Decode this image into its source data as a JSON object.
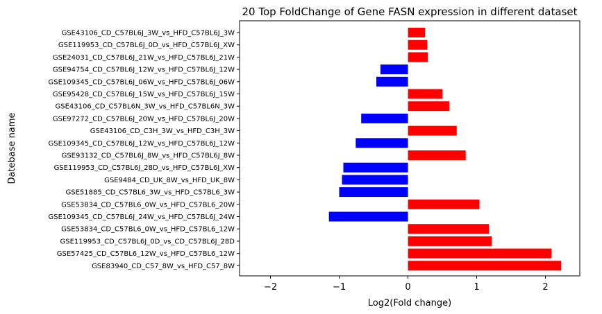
{
  "chart_data": {
    "type": "bar",
    "orientation": "horizontal",
    "title": "20 Top FoldChange of Gene FASN expression in different dataset",
    "xlabel": "Log2(Fold change)",
    "ylabel": "Datebase name",
    "xlim": [
      -2.45,
      2.5
    ],
    "xticks": [
      -2,
      -1,
      0,
      1,
      2
    ],
    "xtick_labels": [
      "−2",
      "−1",
      "0",
      "1",
      "2"
    ],
    "grid": false,
    "colors": {
      "positive": "#ff0000",
      "negative": "#0000ff"
    },
    "categories": [
      "GSE43106_CD_C57BL6J_3W_vs_HFD_C57BL6J_3W",
      "GSE119953_CD_C57BL6J_0D_vs_HFD_C57BL6J_XW",
      "GSE24031_CD_C57BL6J_21W_vs_HFD_C57BL6J_21W",
      "GSE94754_CD_C57BL6J_12W_vs_HFD_C57BL6J_12W",
      "GSE109345_CD_C57BL6J_06W_vs_HFD_C57BL6J_06W",
      "GSE95428_CD_C57BL6J_15W_vs_HFD_C57BL6J_15W",
      "GSE43106_CD_C57BL6N_3W_vs_HFD_C57BL6N_3W",
      "GSE97272_CD_C57BL6J_20W_vs_HFD_C57BL6J_20W",
      "GSE43106_CD_C3H_3W_vs_HFD_C3H_3W",
      "GSE109345_CD_C57BL6J_12W_vs_HFD_C57BL6J_12W",
      "GSE93132_CD_C57BL6J_8W_vs_HFD_C57BL6J_8W",
      "GSE119953_CD_C57BL6J_28D_vs_HFD_C57BL6J_XW",
      "GSE9484_CD_UK_8W_vs_HFD_UK_8W",
      "GSE51885_CD_C57BL6_3W_vs_HFD_C57BL6_3W",
      "GSE53834_CD_C57BL6_0W_vs_HFD_C57BL6_20W",
      "GSE109345_CD_C57BL6J_24W_vs_HFD_C57BL6J_24W",
      "GSE53834_CD_C57BL6_0W_vs_HFD_C57BL6_12W",
      "GSE119953_CD_C57BL6J_0D_vs_CD_C57BL6J_28D",
      "GSE57425_CD_C57BL6_12W_vs_HFD_C57BL6_12W",
      "GSE83940_CD_C57_8W_vs_HFD_C57_8W"
    ],
    "values": [
      0.25,
      0.28,
      0.29,
      -0.4,
      -0.46,
      0.5,
      0.6,
      -0.68,
      0.71,
      -0.76,
      0.84,
      -0.94,
      -0.96,
      -1.0,
      1.04,
      -1.15,
      1.18,
      1.22,
      2.09,
      2.23
    ]
  }
}
